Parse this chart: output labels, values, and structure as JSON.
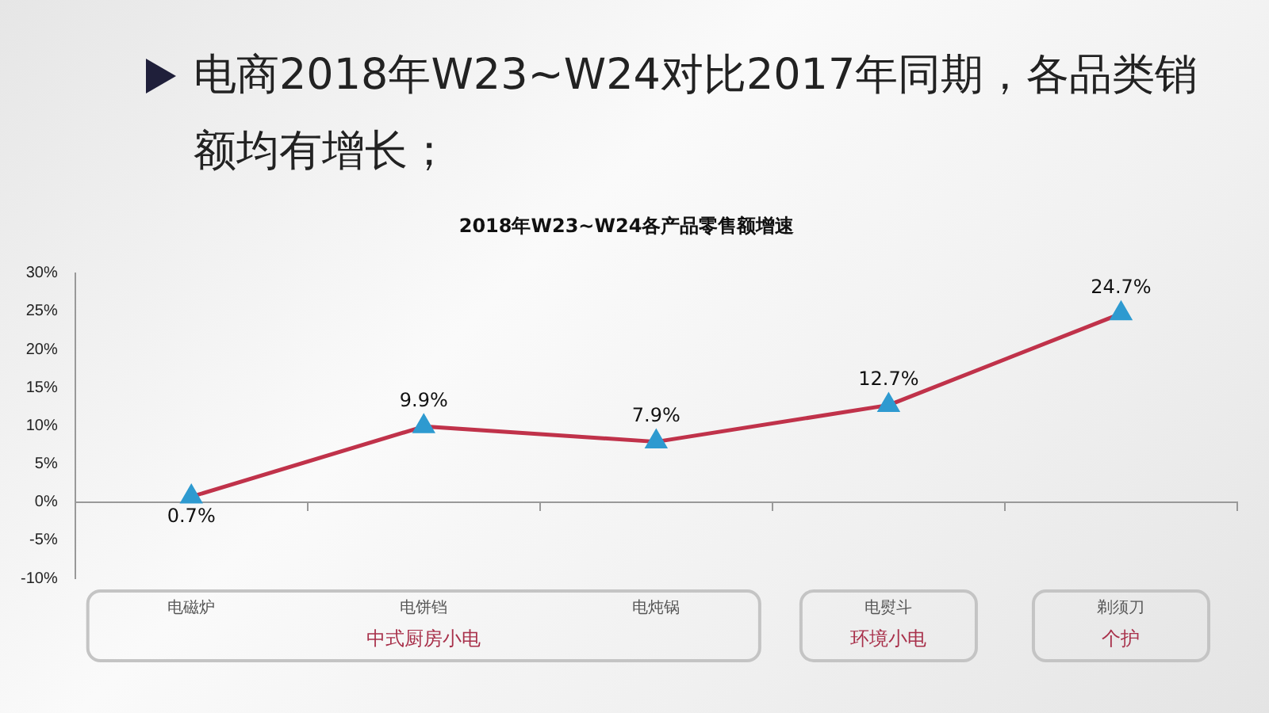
{
  "chart_data": {
    "type": "line",
    "title": "电商2018年W23~W24对比2017年同期，各品类销额均有增长；",
    "subtitle": "2018年W23~W24各产品零售额增速",
    "categories": [
      "电磁炉",
      "电饼铛",
      "电炖锅",
      "电熨斗",
      "剃须刀"
    ],
    "series": [
      {
        "color": "#c0324a",
        "values": [
          0.7,
          9.9,
          7.9,
          12.7,
          24.7
        ],
        "value_labels": [
          "0.7%",
          "9.9%",
          "7.9%",
          "12.7%",
          "24.7%"
        ]
      }
    ],
    "marker": "triangle",
    "line_style": "solid",
    "legend": false,
    "ylim": [
      -10,
      30
    ],
    "yticks": [
      {
        "value": -10,
        "label": "-10%"
      },
      {
        "value": -5,
        "label": "-5%"
      },
      {
        "value": 0,
        "label": "0%"
      },
      {
        "value": 5,
        "label": "5%"
      },
      {
        "value": 10,
        "label": "10%"
      },
      {
        "value": 15,
        "label": "15%"
      },
      {
        "value": 20,
        "label": "20%"
      },
      {
        "value": 25,
        "label": "25%"
      },
      {
        "value": 30,
        "label": "30%"
      }
    ],
    "annotations": [
      "中式厨房小电",
      "环境小电",
      "个护"
    ]
  }
}
